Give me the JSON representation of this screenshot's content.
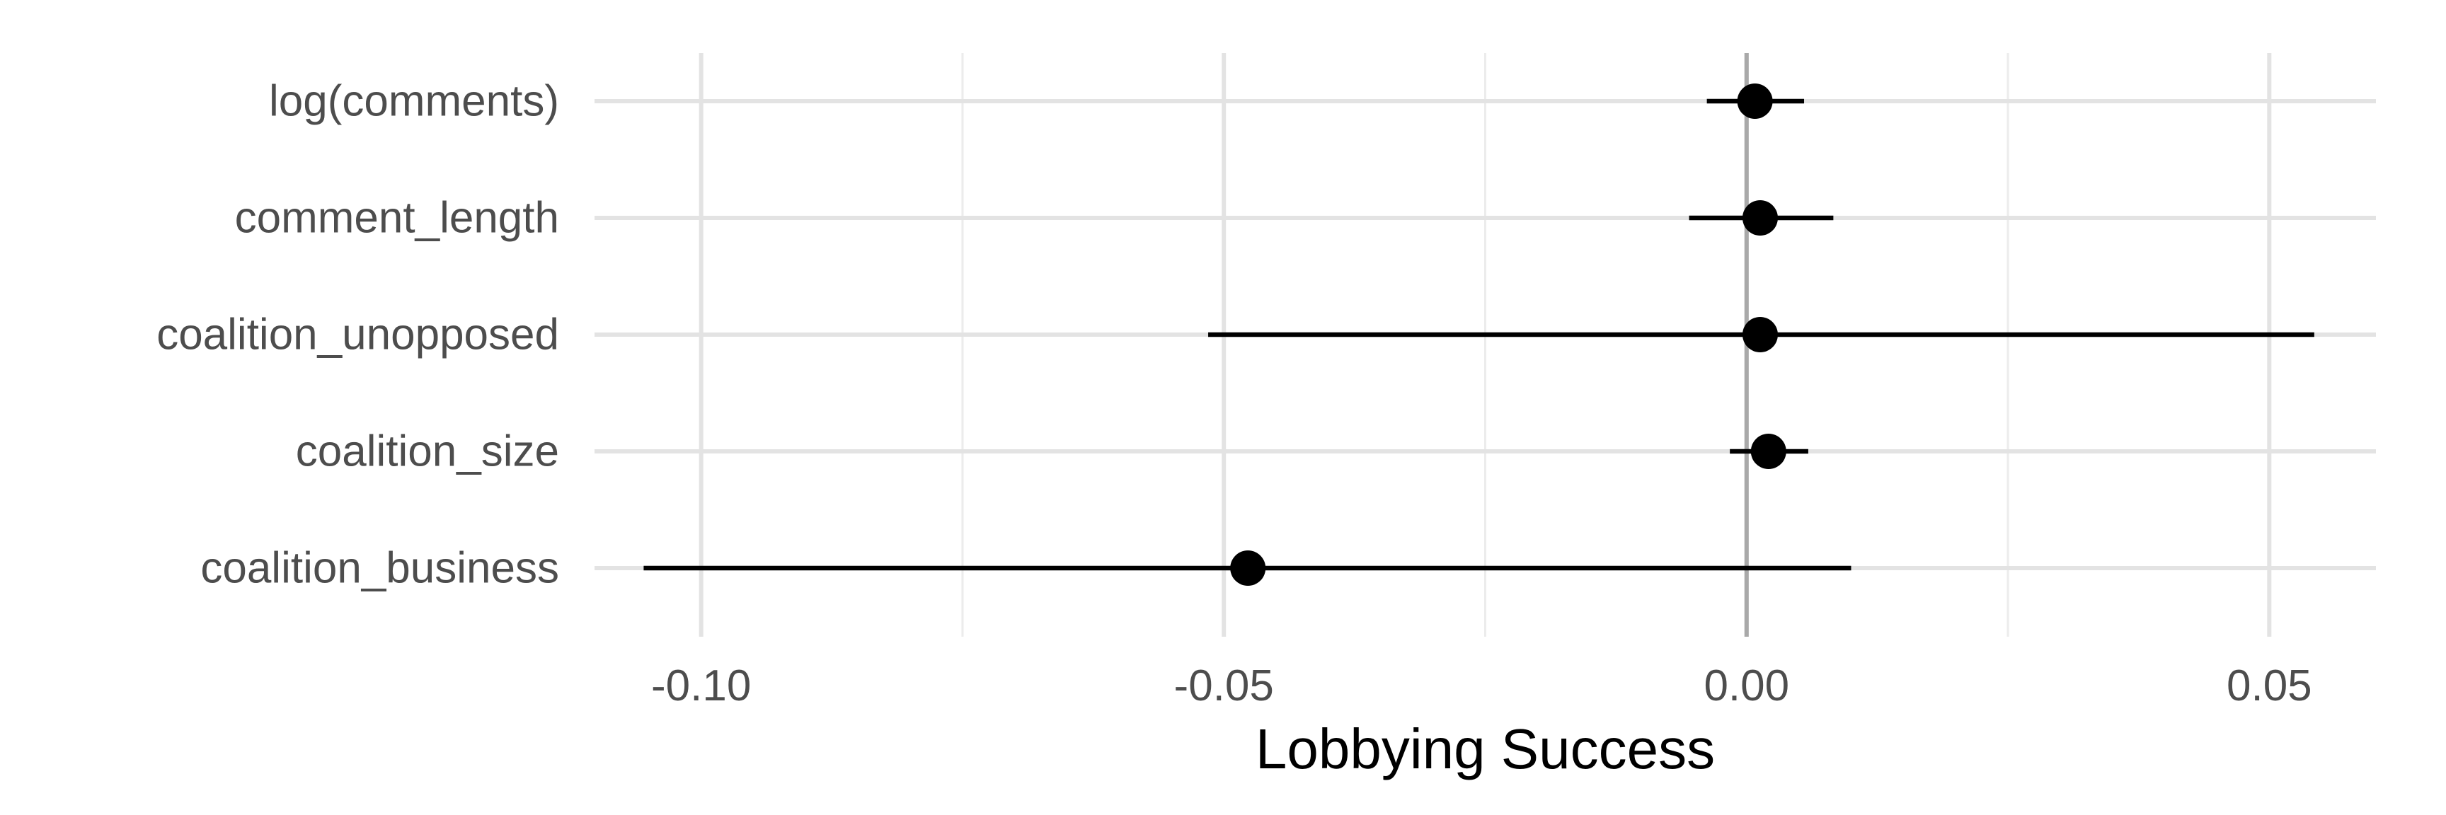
{
  "chart_data": {
    "type": "coefficient-plot",
    "xlabel": "Lobbying Success",
    "ylabel": "",
    "xlim": [
      -0.1102,
      0.0602
    ],
    "x_ticks": [
      -0.1,
      -0.05,
      0.0,
      0.05
    ],
    "x_tick_labels": [
      "-0.10",
      "-0.05",
      "0.00",
      "0.05"
    ],
    "x_minor_ticks": [
      -0.075,
      -0.025,
      0.025
    ],
    "reference_line": 0,
    "grid": true,
    "legend": "none",
    "point_color": "#000000",
    "reference_line_color": "#a9a9a9",
    "categories": [
      "log(comments)",
      "comment_length",
      "coalition_unopposed",
      "coalition_size",
      "coalition_business"
    ],
    "estimates": [
      0.0008,
      0.0013,
      0.0013,
      0.0021,
      -0.0477
    ],
    "conf_low": [
      -0.0038,
      -0.0055,
      -0.0515,
      -0.0016,
      -0.1055
    ],
    "conf_high": [
      0.0055,
      0.0083,
      0.0543,
      0.0059,
      0.01
    ]
  }
}
